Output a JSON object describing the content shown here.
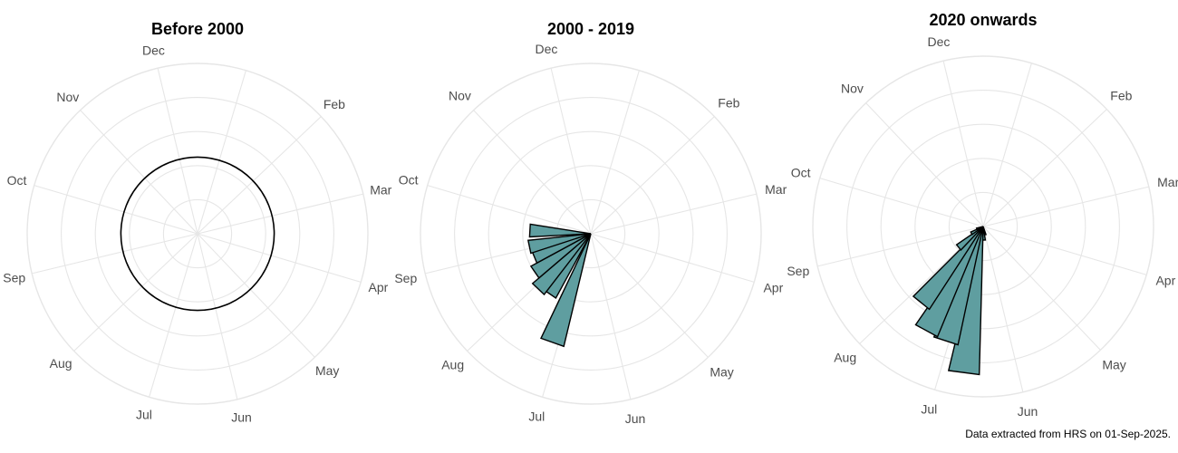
{
  "caption": "Data extracted from HRS on 01-Sep-2025.",
  "colors": {
    "bar_fill": "#5f9ea0",
    "bar_stroke": "#000000",
    "grid": "#e6e6e6",
    "label": "#4d4d4d"
  },
  "chart_data": [
    {
      "type": "bar",
      "projection": "polar",
      "title": "Before 2000",
      "categories": [
        "Dec",
        "Feb",
        "Mar",
        "Apr",
        "May",
        "Jun",
        "Jul",
        "Aug",
        "Sep",
        "Oct",
        "Nov"
      ],
      "circle_marker": true,
      "bars": [],
      "grid": true
    },
    {
      "type": "bar",
      "projection": "polar",
      "title": "2000 - 2019",
      "categories": [
        "Dec",
        "Feb",
        "Mar",
        "Apr",
        "May",
        "Jun",
        "Jul",
        "Aug",
        "Sep",
        "Oct",
        "Nov"
      ],
      "bars": [
        {
          "month_pos": 6.1,
          "value": 0.68
        },
        {
          "month_pos": 6.6,
          "value": 0.43
        },
        {
          "month_pos": 6.9,
          "value": 0.45
        },
        {
          "month_pos": 7.3,
          "value": 0.4
        },
        {
          "month_pos": 7.7,
          "value": 0.36
        },
        {
          "month_pos": 8.05,
          "value": 0.37
        },
        {
          "month_pos": 8.55,
          "value": 0.36
        }
      ],
      "grid": true
    },
    {
      "type": "bar",
      "projection": "polar",
      "title": "2020 onwards",
      "categories": [
        "Dec",
        "Feb",
        "Mar",
        "Apr",
        "May",
        "Jun",
        "Jul",
        "Aug",
        "Sep",
        "Oct",
        "Nov"
      ],
      "bars": [
        {
          "month_pos": 5.0,
          "value": 0.05
        },
        {
          "month_pos": 5.35,
          "value": 0.08
        },
        {
          "month_pos": 5.7,
          "value": 0.87
        },
        {
          "month_pos": 6.05,
          "value": 0.71
        },
        {
          "month_pos": 6.4,
          "value": 0.7
        },
        {
          "month_pos": 6.75,
          "value": 0.58
        },
        {
          "month_pos": 7.1,
          "value": 0.19
        },
        {
          "month_pos": 7.45,
          "value": 0.08
        },
        {
          "month_pos": 7.8,
          "value": 0.04
        }
      ],
      "grid": true
    }
  ]
}
